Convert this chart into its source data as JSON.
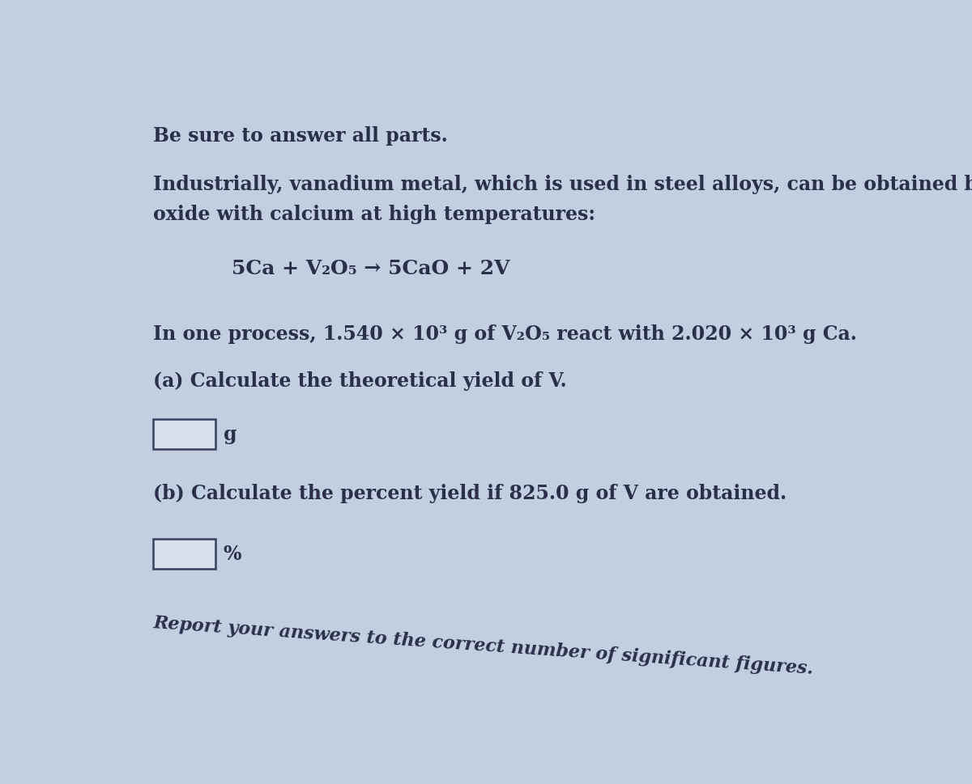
{
  "background_color": "#c2cfe0",
  "text_color": "#2a2f4a",
  "title_line": "Be sure to answer all parts.",
  "intro_line1": "Industrially, vanadium metal, which is used in steel alloys, can be obtained by reacting vanadium(V)",
  "intro_line2": "oxide with calcium at high temperatures:",
  "equation": "5Ca + V₂O₅ → 5CaO + 2V",
  "process_line": "In one process, 1.540 × 10³ g of V₂O₅ react with 2.020 × 10³ g Ca.",
  "part_a": "(a) Calculate the theoretical yield of V.",
  "unit_a": "g",
  "part_b": "(b) Calculate the percent yield if 825.0 g of V are obtained.",
  "unit_b": "%",
  "footer": "Report your answers to the correct number of significant figures.",
  "font_family": "DejaVu Serif",
  "title_fontsize": 17,
  "body_fontsize": 17,
  "equation_fontsize": 18,
  "footer_fontsize": 16,
  "box_edge_color": "#3a4060",
  "box_face_color": "#d8e0ec"
}
